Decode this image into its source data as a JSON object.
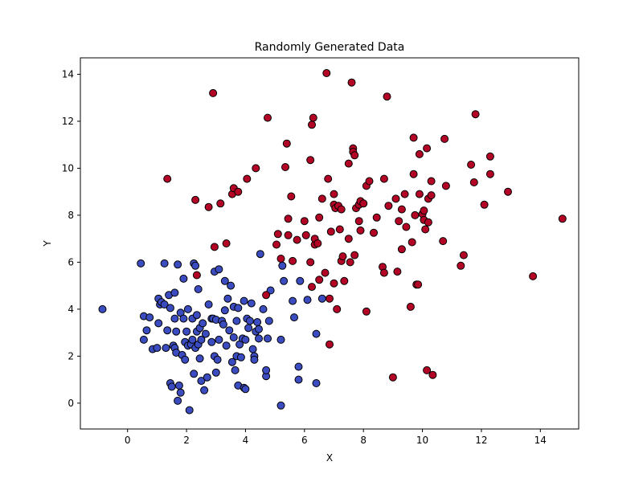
{
  "chart_data": {
    "type": "scatter",
    "title": "Randomly Generated Data",
    "xlabel": "X",
    "ylabel": "Y",
    "xlim": [
      -1.6,
      15.3
    ],
    "ylim": [
      -1.1,
      14.7
    ],
    "xticks": [
      0,
      2,
      4,
      6,
      8,
      10,
      12,
      14
    ],
    "yticks": [
      0,
      2,
      4,
      6,
      8,
      10,
      12,
      14
    ],
    "grid": false,
    "legend": "none",
    "series": [
      {
        "color": "#3b4cc0",
        "edge_color": "#000000",
        "points": [
          [
            -0.85,
            4.0
          ],
          [
            0.45,
            5.95
          ],
          [
            0.55,
            2.7
          ],
          [
            0.55,
            3.7
          ],
          [
            0.65,
            3.1
          ],
          [
            0.75,
            3.65
          ],
          [
            0.85,
            2.3
          ],
          [
            1.0,
            2.35
          ],
          [
            1.05,
            3.4
          ],
          [
            1.05,
            4.45
          ],
          [
            1.1,
            4.2
          ],
          [
            1.15,
            4.3
          ],
          [
            1.25,
            5.95
          ],
          [
            1.25,
            4.2
          ],
          [
            1.3,
            2.35
          ],
          [
            1.35,
            3.1
          ],
          [
            1.4,
            4.6
          ],
          [
            1.45,
            4.05
          ],
          [
            1.45,
            0.85
          ],
          [
            1.5,
            0.7
          ],
          [
            1.55,
            2.45
          ],
          [
            1.6,
            3.6
          ],
          [
            1.6,
            4.7
          ],
          [
            1.6,
            2.35
          ],
          [
            1.65,
            3.05
          ],
          [
            1.65,
            2.15
          ],
          [
            1.7,
            0.1
          ],
          [
            1.7,
            5.9
          ],
          [
            1.75,
            0.75
          ],
          [
            1.8,
            0.45
          ],
          [
            1.8,
            3.85
          ],
          [
            1.85,
            2.05
          ],
          [
            1.9,
            5.3
          ],
          [
            1.9,
            3.6
          ],
          [
            1.95,
            2.6
          ],
          [
            1.95,
            1.85
          ],
          [
            2.0,
            3.05
          ],
          [
            2.05,
            2.45
          ],
          [
            2.05,
            4.0
          ],
          [
            2.1,
            -0.3
          ],
          [
            2.15,
            2.5
          ],
          [
            2.2,
            2.7
          ],
          [
            2.2,
            3.6
          ],
          [
            2.25,
            5.95
          ],
          [
            2.25,
            1.25
          ],
          [
            2.3,
            2.35
          ],
          [
            2.3,
            5.85
          ],
          [
            2.35,
            3.05
          ],
          [
            2.35,
            3.75
          ],
          [
            2.4,
            2.5
          ],
          [
            2.4,
            4.85
          ],
          [
            2.45,
            1.9
          ],
          [
            2.45,
            3.2
          ],
          [
            2.5,
            2.7
          ],
          [
            2.5,
            0.95
          ],
          [
            2.55,
            3.4
          ],
          [
            2.6,
            0.55
          ],
          [
            2.65,
            2.95
          ],
          [
            2.7,
            1.1
          ],
          [
            2.75,
            4.2
          ],
          [
            2.85,
            3.6
          ],
          [
            2.85,
            2.6
          ],
          [
            2.9,
            3.6
          ],
          [
            2.95,
            2.0
          ],
          [
            2.95,
            5.6
          ],
          [
            3.0,
            1.3
          ],
          [
            3.0,
            3.55
          ],
          [
            3.05,
            1.85
          ],
          [
            3.1,
            2.7
          ],
          [
            3.1,
            5.7
          ],
          [
            3.2,
            3.5
          ],
          [
            3.25,
            3.35
          ],
          [
            3.3,
            5.2
          ],
          [
            3.3,
            3.95
          ],
          [
            3.35,
            2.45
          ],
          [
            3.4,
            4.45
          ],
          [
            3.45,
            3.1
          ],
          [
            3.5,
            5.0
          ],
          [
            3.55,
            1.75
          ],
          [
            3.6,
            4.1
          ],
          [
            3.6,
            2.8
          ],
          [
            3.65,
            1.4
          ],
          [
            3.7,
            2.0
          ],
          [
            3.7,
            3.5
          ],
          [
            3.75,
            4.05
          ],
          [
            3.75,
            0.75
          ],
          [
            3.8,
            2.5
          ],
          [
            3.85,
            1.95
          ],
          [
            3.9,
            2.75
          ],
          [
            3.95,
            4.35
          ],
          [
            3.95,
            0.65
          ],
          [
            4.0,
            0.6
          ],
          [
            4.0,
            2.7
          ],
          [
            4.05,
            3.6
          ],
          [
            4.1,
            3.2
          ],
          [
            4.15,
            3.5
          ],
          [
            4.2,
            4.25
          ],
          [
            4.25,
            2.3
          ],
          [
            4.3,
            2.0
          ],
          [
            4.3,
            1.85
          ],
          [
            4.35,
            3.05
          ],
          [
            4.4,
            3.45
          ],
          [
            4.45,
            3.15
          ],
          [
            4.45,
            2.75
          ],
          [
            4.5,
            6.35
          ],
          [
            4.6,
            4.0
          ],
          [
            4.7,
            1.15
          ],
          [
            4.7,
            1.4
          ],
          [
            4.75,
            2.75
          ],
          [
            4.8,
            3.5
          ],
          [
            4.85,
            4.8
          ],
          [
            5.2,
            -0.1
          ],
          [
            5.2,
            2.7
          ],
          [
            5.25,
            5.85
          ],
          [
            5.3,
            5.2
          ],
          [
            5.6,
            4.35
          ],
          [
            5.65,
            3.65
          ],
          [
            5.8,
            1.55
          ],
          [
            5.8,
            1.0
          ],
          [
            5.85,
            5.2
          ],
          [
            6.1,
            4.4
          ],
          [
            6.4,
            0.85
          ],
          [
            6.4,
            2.95
          ],
          [
            6.6,
            4.45
          ]
        ]
      },
      {
        "color": "#b40426",
        "edge_color": "#000000",
        "points": [
          [
            1.35,
            9.55
          ],
          [
            2.3,
            8.65
          ],
          [
            2.35,
            5.45
          ],
          [
            2.75,
            8.35
          ],
          [
            2.9,
            13.2
          ],
          [
            2.95,
            6.65
          ],
          [
            3.15,
            8.5
          ],
          [
            3.35,
            6.8
          ],
          [
            3.55,
            8.9
          ],
          [
            3.6,
            9.15
          ],
          [
            3.75,
            9.0
          ],
          [
            4.05,
            9.55
          ],
          [
            4.35,
            10.0
          ],
          [
            4.7,
            4.6
          ],
          [
            4.75,
            12.15
          ],
          [
            5.05,
            6.75
          ],
          [
            5.1,
            7.2
          ],
          [
            5.2,
            6.15
          ],
          [
            5.35,
            10.05
          ],
          [
            5.4,
            11.05
          ],
          [
            5.45,
            7.15
          ],
          [
            5.45,
            7.85
          ],
          [
            5.55,
            8.8
          ],
          [
            5.6,
            6.05
          ],
          [
            5.75,
            6.95
          ],
          [
            6.0,
            7.75
          ],
          [
            6.05,
            7.15
          ],
          [
            6.2,
            6.0
          ],
          [
            6.2,
            10.35
          ],
          [
            6.25,
            11.85
          ],
          [
            6.25,
            4.95
          ],
          [
            6.3,
            12.15
          ],
          [
            6.35,
            6.75
          ],
          [
            6.35,
            7.0
          ],
          [
            6.45,
            6.8
          ],
          [
            6.5,
            7.9
          ],
          [
            6.5,
            5.25
          ],
          [
            6.6,
            8.7
          ],
          [
            6.7,
            5.55
          ],
          [
            6.75,
            14.05
          ],
          [
            6.8,
            9.55
          ],
          [
            6.85,
            4.45
          ],
          [
            6.85,
            2.5
          ],
          [
            6.9,
            7.3
          ],
          [
            7.0,
            8.45
          ],
          [
            7.0,
            8.9
          ],
          [
            7.0,
            5.1
          ],
          [
            7.05,
            8.3
          ],
          [
            7.1,
            4.0
          ],
          [
            7.15,
            8.4
          ],
          [
            7.2,
            7.4
          ],
          [
            7.25,
            8.25
          ],
          [
            7.25,
            6.05
          ],
          [
            7.3,
            6.25
          ],
          [
            7.35,
            5.2
          ],
          [
            7.5,
            10.2
          ],
          [
            7.5,
            7.0
          ],
          [
            7.55,
            6.0
          ],
          [
            7.6,
            13.65
          ],
          [
            7.65,
            10.85
          ],
          [
            7.65,
            10.7
          ],
          [
            7.7,
            10.55
          ],
          [
            7.7,
            6.3
          ],
          [
            7.75,
            8.3
          ],
          [
            7.85,
            8.45
          ],
          [
            7.85,
            7.75
          ],
          [
            7.9,
            8.6
          ],
          [
            7.9,
            7.35
          ],
          [
            8.0,
            8.5
          ],
          [
            8.1,
            9.25
          ],
          [
            8.1,
            3.9
          ],
          [
            8.2,
            9.45
          ],
          [
            8.35,
            7.25
          ],
          [
            8.45,
            7.9
          ],
          [
            8.65,
            5.8
          ],
          [
            8.7,
            9.55
          ],
          [
            8.7,
            5.55
          ],
          [
            8.8,
            13.05
          ],
          [
            8.85,
            8.4
          ],
          [
            9.0,
            1.1
          ],
          [
            9.1,
            8.7
          ],
          [
            9.15,
            5.6
          ],
          [
            9.2,
            7.75
          ],
          [
            9.3,
            8.25
          ],
          [
            9.3,
            6.55
          ],
          [
            9.4,
            8.9
          ],
          [
            9.45,
            7.5
          ],
          [
            9.6,
            4.1
          ],
          [
            9.65,
            6.85
          ],
          [
            9.7,
            9.75
          ],
          [
            9.7,
            11.3
          ],
          [
            9.75,
            8.0
          ],
          [
            9.8,
            5.05
          ],
          [
            9.85,
            5.05
          ],
          [
            9.9,
            10.6
          ],
          [
            9.9,
            8.9
          ],
          [
            10.0,
            8.05
          ],
          [
            10.05,
            7.8
          ],
          [
            10.05,
            8.2
          ],
          [
            10.1,
            7.4
          ],
          [
            10.15,
            10.85
          ],
          [
            10.15,
            1.4
          ],
          [
            10.2,
            8.7
          ],
          [
            10.2,
            7.7
          ],
          [
            10.3,
            8.85
          ],
          [
            10.3,
            9.45
          ],
          [
            10.35,
            1.2
          ],
          [
            10.7,
            6.9
          ],
          [
            10.75,
            11.25
          ],
          [
            10.8,
            9.25
          ],
          [
            11.3,
            5.85
          ],
          [
            11.4,
            6.3
          ],
          [
            11.65,
            10.15
          ],
          [
            11.75,
            9.4
          ],
          [
            11.8,
            12.3
          ],
          [
            12.1,
            8.45
          ],
          [
            12.3,
            10.5
          ],
          [
            12.3,
            9.75
          ],
          [
            12.9,
            9.0
          ],
          [
            13.75,
            5.4
          ],
          [
            14.75,
            7.85
          ]
        ]
      }
    ]
  }
}
